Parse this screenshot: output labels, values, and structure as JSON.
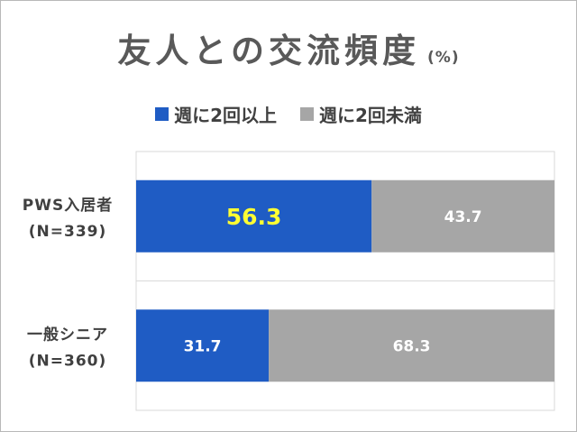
{
  "chart_data": {
    "type": "bar",
    "orientation": "horizontal",
    "stacked": true,
    "title": "友人との交流頻度",
    "unit": "(%)",
    "categories": [
      "PWS入居者\n(N=339)",
      "一般シニア\n(N=360)"
    ],
    "series": [
      {
        "name": "週に2回以上",
        "values": [
          56.3,
          31.7
        ],
        "color": "#1f5cc4",
        "label_colors": [
          "#ffff33",
          "#ffffff"
        ]
      },
      {
        "name": "週に2回未満",
        "values": [
          43.7,
          68.3
        ],
        "color": "#a6a6a6",
        "label_colors": [
          "#ffffff",
          "#ffffff"
        ]
      }
    ],
    "xlim": [
      0,
      100
    ],
    "legend": "top",
    "grid": true
  }
}
